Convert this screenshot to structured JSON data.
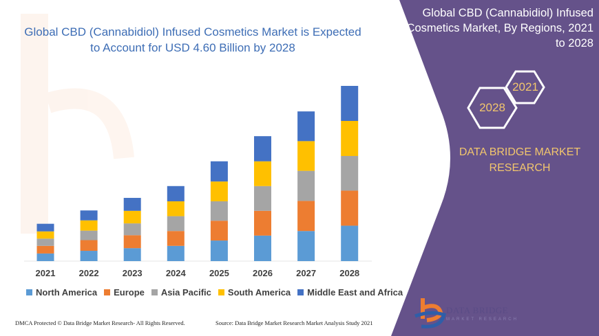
{
  "header": {
    "title_line1": "Global CBD (Cannabidiol) Infused Cosmetics Market is Expected",
    "title_line2": "to Account for USD 4.60 Billion by 2028"
  },
  "side_panel": {
    "title_line1": "Global CBD (Cannabidiol) Infused",
    "title_line2": "Cosmetics Market, By Regions, 2021",
    "title_line3": "to 2028",
    "hex_start": "2021",
    "hex_end": "2028",
    "brand_line1": "DATA BRIDGE MARKET",
    "brand_line2": "RESEARCH",
    "logo_text": "DATA BRIDGE",
    "logo_sub": "MARKET RESEARCH",
    "background_color": "#65528a",
    "accent_color": "#f2c66d"
  },
  "watermark": "DATA BRIDGE MARKET RESEARCH",
  "footer": {
    "left": "DMCA Protected © Data Bridge Market Research- All Rights Reserved.",
    "right": "Source: Data Bridge Market Research Market Analysis Study 2021"
  },
  "chart_data": {
    "type": "bar",
    "stacked": true,
    "categories": [
      "2021",
      "2022",
      "2023",
      "2024",
      "2025",
      "2026",
      "2027",
      "2028"
    ],
    "series": [
      {
        "name": "North America",
        "color": "#5b9bd5",
        "values": [
          0.2,
          0.27,
          0.34,
          0.4,
          0.54,
          0.67,
          0.79,
          0.93
        ]
      },
      {
        "name": "Europe",
        "color": "#ed7d31",
        "values": [
          0.2,
          0.28,
          0.34,
          0.39,
          0.52,
          0.65,
          0.79,
          0.92
        ]
      },
      {
        "name": "Asia Pacific",
        "color": "#a5a5a5",
        "values": [
          0.19,
          0.25,
          0.31,
          0.39,
          0.51,
          0.65,
          0.79,
          0.91
        ]
      },
      {
        "name": "South America",
        "color": "#ffc000",
        "values": [
          0.19,
          0.27,
          0.33,
          0.39,
          0.52,
          0.65,
          0.78,
          0.92
        ]
      },
      {
        "name": "Middle East and Africa",
        "color": "#4472c4",
        "values": [
          0.2,
          0.26,
          0.34,
          0.4,
          0.53,
          0.66,
          0.78,
          0.92
        ]
      }
    ],
    "ylim": [
      0,
      4.6
    ],
    "y_axis_shown": false,
    "grid": false,
    "legend": "bottom"
  }
}
